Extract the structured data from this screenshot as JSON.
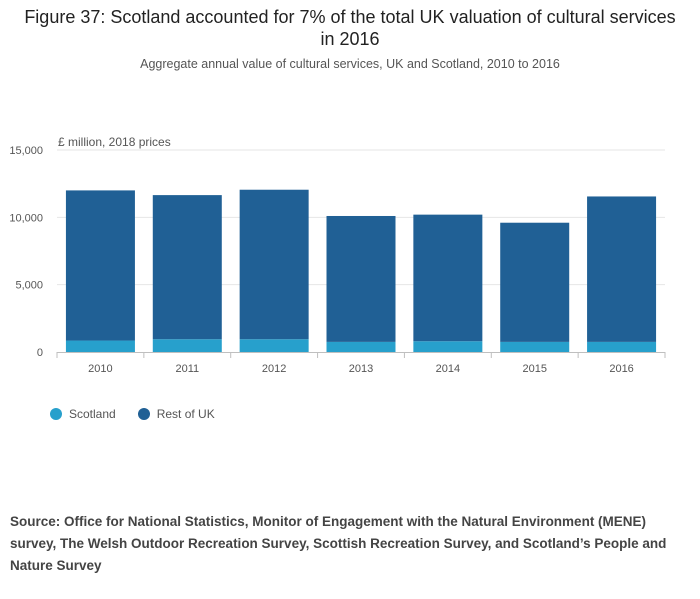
{
  "title": "Figure 37: Scotland accounted for 7% of the total UK valuation of cultural services in 2016",
  "subtitle": "Aggregate annual value of cultural services, UK and Scotland, 2010 to 2016",
  "source": "Source: Office for National Statistics, Monitor of Engagement with the Natural Environment (MENE) survey, The Welsh Outdoor Recreation Survey, Scottish Recreation Survey, and Scotland’s People and Nature Survey",
  "chart_data": {
    "type": "bar",
    "stacked": true,
    "categories": [
      "2010",
      "2011",
      "2012",
      "2013",
      "2014",
      "2015",
      "2016"
    ],
    "ylabel": "£ million, 2018 prices",
    "ylim": [
      0,
      15000
    ],
    "yticks": [
      0,
      5000,
      10000,
      15000
    ],
    "ytick_labels": [
      "0",
      "5,000",
      "10,000",
      "15,000"
    ],
    "grid": true,
    "legend_position": "bottom-left",
    "series": [
      {
        "name": "Scotland",
        "color": "#27a0cc",
        "values": [
          850,
          950,
          950,
          750,
          800,
          750,
          750
        ]
      },
      {
        "name": "Rest of UK",
        "color": "#206095",
        "values": [
          11150,
          10700,
          11100,
          9350,
          9400,
          8850,
          10800
        ]
      }
    ]
  }
}
